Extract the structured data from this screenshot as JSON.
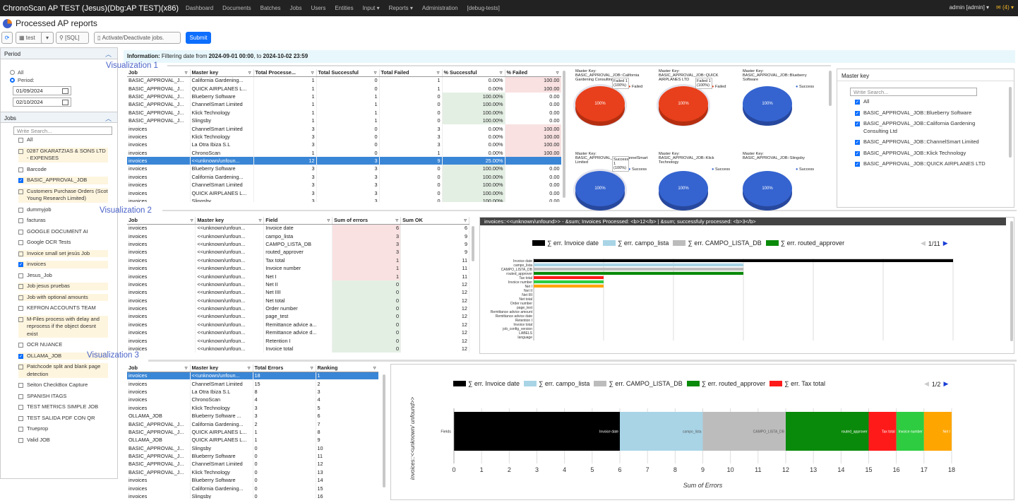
{
  "app": {
    "title": "ChronoScan AP TEST (Jesus)(Dbg:AP TEST)(x86)",
    "menu": [
      "Dashboard",
      "Documents",
      "Batches",
      "Jobs",
      "Users",
      "Entities",
      "Input ▾",
      "Reports ▾",
      "Administration",
      "[debug-tests]"
    ],
    "user": "admin [admin] ▾",
    "mail": "✉ (4) ▾"
  },
  "page": {
    "title": "Processed AP reports"
  },
  "toolbar": {
    "refresh_icon": "refresh-icon",
    "template": "test",
    "sql_placeholder": "[SQL]",
    "activate_label": "Activate/Deactivate jobs.",
    "submit": "Submit"
  },
  "period": {
    "title": "Period",
    "all": "All",
    "period": "Period:",
    "from": "01/09/2024",
    "to": "02/10/2024"
  },
  "jobs": {
    "title": "Jobs",
    "search_placeholder": "Write Search...",
    "items": [
      {
        "label": "All",
        "checked": false,
        "hl": false
      },
      {
        "label": "0287 GKARATZIAS & SONS LTD - EXPENSES",
        "checked": false,
        "hl": true
      },
      {
        "label": "Barcode",
        "checked": false,
        "hl": false
      },
      {
        "label": "BASIC_APPROVAL_JOB",
        "checked": true,
        "hl": true
      },
      {
        "label": "Customers Purchase Orders (Scot Young Research Limited)",
        "checked": false,
        "hl": true
      },
      {
        "label": "dummyjob",
        "checked": false,
        "hl": false
      },
      {
        "label": "facturas",
        "checked": false,
        "hl": false
      },
      {
        "label": "GOOGLE DOCUMENT AI",
        "checked": false,
        "hl": false
      },
      {
        "label": "Google OCR Tests",
        "checked": false,
        "hl": false
      },
      {
        "label": "Invoice small set jesús Job",
        "checked": false,
        "hl": true
      },
      {
        "label": "invoices",
        "checked": true,
        "hl": true
      },
      {
        "label": "Jesus_Job",
        "checked": false,
        "hl": false
      },
      {
        "label": "Job jesus pruebas",
        "checked": false,
        "hl": true
      },
      {
        "label": "Job with optional amounts",
        "checked": false,
        "hl": true
      },
      {
        "label": "KEFRON ACCOUNTS TEAM",
        "checked": false,
        "hl": false
      },
      {
        "label": "M-Files process with delay and reprocess if the object doesnt exist",
        "checked": false,
        "hl": true
      },
      {
        "label": "OCR NUANCE",
        "checked": false,
        "hl": false
      },
      {
        "label": "OLLAMA_JOB",
        "checked": true,
        "hl": true
      },
      {
        "label": "Patchcode split and blank page detection",
        "checked": false,
        "hl": true
      },
      {
        "label": "Seiton CheckBox Capture",
        "checked": false,
        "hl": false
      },
      {
        "label": "SPANISH ITAGS",
        "checked": false,
        "hl": false
      },
      {
        "label": "TEST METRICS SIMPLE JOB",
        "checked": false,
        "hl": false
      },
      {
        "label": "TEST SALIDA PDF CON QR",
        "checked": false,
        "hl": false
      },
      {
        "label": "Trueprop",
        "checked": false,
        "hl": false
      },
      {
        "label": "Valid JOB",
        "checked": false,
        "hl": false
      }
    ]
  },
  "info": {
    "prefix": "Information:",
    "text": " Filtering date from ",
    "from": "2024-09-01 00:00",
    "mid": ", to ",
    "to": "2024-10-02 23:59"
  },
  "labels": {
    "v1": "Visualization 1",
    "v2": "Visualization 2",
    "v3": "Visualization 3"
  },
  "t1": {
    "headers": [
      "Job",
      "Master key",
      "Total Processe...",
      "Total Successful",
      "Total Failed",
      "% Successful",
      "% Failed"
    ],
    "rows": [
      [
        "BASIC_APPROVAL_J...",
        "California Gardening...",
        "1",
        "0",
        "1",
        "0.00%",
        "100.00"
      ],
      [
        "BASIC_APPROVAL_J...",
        "QUICK AIRPLANES L...",
        "1",
        "0",
        "1",
        "0.00%",
        "100.00"
      ],
      [
        "BASIC_APPROVAL_J...",
        "Blueberry Software",
        "1",
        "1",
        "0",
        "100.00%",
        "0.00"
      ],
      [
        "BASIC_APPROVAL_J...",
        "ChannelSmart Limited",
        "1",
        "1",
        "0",
        "100.00%",
        "0.00"
      ],
      [
        "BASIC_APPROVAL_J...",
        "Klick Technology",
        "1",
        "1",
        "0",
        "100.00%",
        "0.00"
      ],
      [
        "BASIC_APPROVAL_J...",
        "Slingsby",
        "1",
        "1",
        "0",
        "100.00%",
        "0.00"
      ],
      [
        "invoices",
        "ChannelSmart Limited",
        "3",
        "0",
        "3",
        "0.00%",
        "100.00"
      ],
      [
        "invoices",
        "Klick Technology",
        "3",
        "0",
        "3",
        "0.00%",
        "100.00"
      ],
      [
        "invoices",
        "La Otra Ibiza S.L",
        "3",
        "0",
        "3",
        "0.00%",
        "100.00"
      ],
      [
        "invoices",
        "ChronoScan",
        "1",
        "0",
        "1",
        "0.00%",
        "100.00"
      ],
      [
        "invoices",
        "<<unknown/unfoun...",
        "12",
        "3",
        "9",
        "25.00%",
        ""
      ],
      [
        "invoices",
        "Blueberry Software",
        "3",
        "3",
        "0",
        "100.00%",
        "0.00"
      ],
      [
        "invoices",
        "California Gardening...",
        "3",
        "3",
        "0",
        "100.00%",
        "0.00"
      ],
      [
        "invoices",
        "ChannelSmart Limited",
        "3",
        "3",
        "0",
        "100.00%",
        "0.00"
      ],
      [
        "invoices",
        "QUICK AIRPLANES L...",
        "3",
        "3",
        "0",
        "100.00%",
        "0.00"
      ],
      [
        "invoices",
        "Slingsby",
        "3",
        "3",
        "0",
        "100.00%",
        "0.00"
      ]
    ]
  },
  "pies": [
    {
      "title": "Master Key: BASIC_APPROVAL_JOB::California Gardening Consulting Ltd",
      "legend": "Failed",
      "label": "100%",
      "tip": "Failed 1 (100%)",
      "color": "#e8401c"
    },
    {
      "title": "Master Key: BASIC_APPROVAL_JOB::QUICK AIRPLANES LTD",
      "legend": "Failed",
      "label": "100%",
      "tip": "Failed 1 (100%)",
      "color": "#e8401c"
    },
    {
      "title": "Master Key: BASIC_APPROVAL_JOB::Blueberry Software",
      "legend": "Success",
      "label": "100%",
      "tip": "",
      "color": "#3564d0"
    },
    {
      "title": "Master Key: BASIC_APPROVAL_JOB::ChannelSmart Limited",
      "legend": "Success",
      "label": "100%",
      "tip": "Success 1 (100%)",
      "color": "#3564d0"
    },
    {
      "title": "Master Key: BASIC_APPROVAL_JOB::Klick Technology",
      "legend": "Success",
      "label": "100%",
      "tip": "",
      "color": "#3564d0"
    },
    {
      "title": "Master Key: BASIC_APPROVAL_JOB::Slingsby",
      "legend": "Success",
      "label": "100%",
      "tip": "",
      "color": "#3564d0"
    }
  ],
  "masterkey": {
    "title": "Master key",
    "search_placeholder": "Write Search...",
    "items": [
      "All",
      "BASIC_APPROVAL_JOB::Blueberry Software",
      "BASIC_APPROVAL_JOB::California Gardening Consulting Ltd",
      "BASIC_APPROVAL_JOB::ChannelSmart Limited",
      "BASIC_APPROVAL_JOB::Klick Technology",
      "BASIC_APPROVAL_JOB::QUICK AIRPLANES LTD"
    ]
  },
  "t2": {
    "headers": [
      "Job",
      "Master key",
      "Field",
      "Sum of errors",
      "Sum OK"
    ],
    "rows": [
      [
        "invoices",
        "<<unknown/unfoun...",
        "Invoice date",
        "6",
        "6"
      ],
      [
        "invoices",
        "<<unknown/unfoun...",
        "campo_lista",
        "3",
        "9"
      ],
      [
        "invoices",
        "<<unknown/unfoun...",
        "CAMPO_LISTA_DB",
        "3",
        "9"
      ],
      [
        "invoices",
        "<<unknown/unfoun...",
        "routed_approver",
        "3",
        "9"
      ],
      [
        "invoices",
        "<<unknown/unfoun...",
        "Tax total",
        "1",
        "11"
      ],
      [
        "invoices",
        "<<unknown/unfoun...",
        "Invoice number",
        "1",
        "11"
      ],
      [
        "invoices",
        "<<unknown/unfoun...",
        "Net I",
        "1",
        "11"
      ],
      [
        "invoices",
        "<<unknown/unfoun...",
        "Net II",
        "0",
        "12"
      ],
      [
        "invoices",
        "<<unknown/unfoun...",
        "Net IIII",
        "0",
        "12"
      ],
      [
        "invoices",
        "<<unknown/unfoun...",
        "Net total",
        "0",
        "12"
      ],
      [
        "invoices",
        "<<unknown/unfoun...",
        "Order number",
        "0",
        "12"
      ],
      [
        "invoices",
        "<<unknown/unfoun...",
        "page_test",
        "0",
        "12"
      ],
      [
        "invoices",
        "<<unknown/unfoun...",
        "Remittance advice a...",
        "0",
        "12"
      ],
      [
        "invoices",
        "<<unknown/unfoun...",
        "Remittance advice d...",
        "0",
        "12"
      ],
      [
        "invoices",
        "<<unknown/unfoun...",
        "Retention I",
        "0",
        "12"
      ],
      [
        "invoices",
        "<<unknown/unfoun...",
        "Invoice total",
        "0",
        "12"
      ]
    ]
  },
  "chart2": {
    "header": "invoices::<<unknown/unfound>> - &sum; Invoices Processed: <b>12</b> | &sum; successfuly processed: <b>3</b>",
    "legend": [
      {
        "name": "∑ err. Invoice date",
        "color": "#000000"
      },
      {
        "name": "∑ err. campo_lista",
        "color": "#a8d4e6"
      },
      {
        "name": "∑ err. CAMPO_LISTA_DB",
        "color": "#bcbcbc"
      },
      {
        "name": "∑ err. routed_approver",
        "color": "#0a8a0a"
      }
    ],
    "page": "1/11",
    "categories": [
      "Invoice date",
      "campo_lista",
      "CAMPO_LISTA_DB",
      "routed_approver",
      "Tax total",
      "Invoice number",
      "Net I",
      "Net II",
      "Net IIII",
      "Net total",
      "Order number",
      "page_test",
      "Remittance advice amount",
      "Remittance advice date",
      "Retention I",
      "Invoice total",
      "job_config_version",
      "LABELS",
      "language"
    ],
    "bar_colors": [
      "#000000",
      "#a8d4e6",
      "#bcbcbc",
      "#0a8a0a",
      "#ff1a1a",
      "#2ecc40",
      "#ffa500"
    ]
  },
  "t3": {
    "headers": [
      "Job",
      "Master key",
      "Total Errors",
      "Ranking"
    ],
    "rows": [
      [
        "invoices",
        "<<unknown/unfoun...",
        "18",
        "1"
      ],
      [
        "invoices",
        "ChannelSmart Limited",
        "15",
        "2"
      ],
      [
        "invoices",
        "La Otra Ibiza S.L",
        "8",
        "3"
      ],
      [
        "invoices",
        "ChronoScan",
        "4",
        "4"
      ],
      [
        "invoices",
        "Klick Technology",
        "3",
        "5"
      ],
      [
        "OLLAMA_JOB",
        "Blueberry Software ...",
        "3",
        "6"
      ],
      [
        "BASIC_APPROVAL_J...",
        "California Gardening...",
        "2",
        "7"
      ],
      [
        "BASIC_APPROVAL_J...",
        "QUICK AIRPLANES L...",
        "1",
        "8"
      ],
      [
        "OLLAMA_JOB",
        "QUICK AIRPLANES L...",
        "1",
        "9"
      ],
      [
        "BASIC_APPROVAL_J...",
        "Slingsby",
        "0",
        "10"
      ],
      [
        "BASIC_APPROVAL_J...",
        "Blueberry Software",
        "0",
        "11"
      ],
      [
        "BASIC_APPROVAL_J...",
        "ChannelSmart Limited",
        "0",
        "12"
      ],
      [
        "BASIC_APPROVAL_J...",
        "Klick Technology",
        "0",
        "13"
      ],
      [
        "invoices",
        "Blueberry Software",
        "0",
        "14"
      ],
      [
        "invoices",
        "California Gardening...",
        "0",
        "15"
      ],
      [
        "invoices",
        "Slingsby",
        "0",
        "16"
      ]
    ]
  },
  "chart3": {
    "legend": [
      {
        "name": "∑ err. Invoice date",
        "color": "#000000"
      },
      {
        "name": "∑ err. campo_lista",
        "color": "#a8d4e6"
      },
      {
        "name": "∑ err. CAMPO_LISTA_DB",
        "color": "#bcbcbc"
      },
      {
        "name": "∑ err. routed_approver",
        "color": "#0a8a0a"
      },
      {
        "name": "∑ err. Tax total",
        "color": "#ff1a1a"
      }
    ],
    "page": "1/2",
    "ylabel": "invoices::<<unknown/ unfound>>",
    "xlabel": "Sum of Errors",
    "ycat": "Fields",
    "segment_colors": [
      "#000000",
      "#a8d4e6",
      "#bcbcbc",
      "#0a8a0a",
      "#ff1a1a",
      "#2ecc40",
      "#ffa500"
    ]
  },
  "chart_data": [
    {
      "type": "bar",
      "orientation": "horizontal",
      "categories": [
        "Invoice date",
        "campo_lista",
        "CAMPO_LISTA_DB",
        "routed_approver",
        "Tax total",
        "Invoice number",
        "Net I",
        "Net II",
        "Net IIII",
        "Net total",
        "Order number",
        "page_test",
        "Remittance advice amount",
        "Remittance advice date",
        "Retention I",
        "Invoice total",
        "job_config_version",
        "LABELS",
        "language"
      ],
      "values": [
        6,
        3,
        3,
        3,
        1,
        1,
        1,
        0,
        0,
        0,
        0,
        0,
        0,
        0,
        0,
        0,
        0,
        0,
        0
      ],
      "xlim": [
        0,
        6
      ]
    },
    {
      "type": "bar",
      "stacked": true,
      "orientation": "horizontal",
      "categories": [
        "Fields"
      ],
      "series": [
        {
          "name": "Invoice date",
          "values": [
            6
          ]
        },
        {
          "name": "campo_lista",
          "values": [
            3
          ]
        },
        {
          "name": "CAMPO_LISTA_DB",
          "values": [
            3
          ]
        },
        {
          "name": "routed_approver",
          "values": [
            3
          ]
        },
        {
          "name": "Tax total",
          "values": [
            1
          ]
        },
        {
          "name": "Invoice number",
          "values": [
            1
          ]
        },
        {
          "name": "Net I",
          "values": [
            1
          ]
        }
      ],
      "xlabel": "Sum of Errors",
      "xlim": [
        0,
        18
      ],
      "xticks": [
        0,
        1,
        2,
        3,
        4,
        5,
        6,
        7,
        8,
        9,
        10,
        11,
        12,
        13,
        14,
        15,
        16,
        17,
        18
      ]
    }
  ]
}
